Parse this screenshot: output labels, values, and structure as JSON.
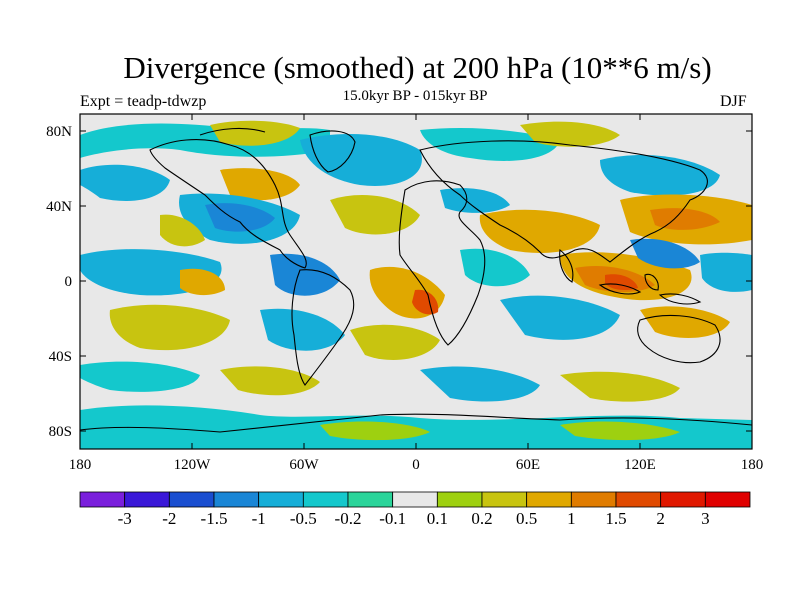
{
  "header": {
    "title": "Divergence (smoothed) at 200 hPa (10**6 m/s)",
    "subtitle": "15.0kyr BP - 015kyr BP",
    "experiment": "Expt = teadp-tdwzp",
    "season": "DJF"
  },
  "axes": {
    "lat_ticks": [
      "80N",
      "40N",
      "0",
      "40S",
      "80S"
    ],
    "lon_ticks": [
      "180",
      "120W",
      "60W",
      "0",
      "60E",
      "120E",
      "180"
    ]
  },
  "colorbar": {
    "labels": [
      "-3",
      "-2",
      "-1.5",
      "-1",
      "-0.5",
      "-0.2",
      "-0.1",
      "0.1",
      "0.2",
      "0.5",
      "1",
      "1.5",
      "2",
      "3"
    ],
    "colors": [
      "#7a1fdc",
      "#3a18d8",
      "#1a4ed0",
      "#1a86d6",
      "#16aed8",
      "#14c8cc",
      "#2bd49a",
      "#e8e8e8",
      "#9ed010",
      "#c8c410",
      "#e0a800",
      "#e07c00",
      "#e04a00",
      "#e01800",
      "#e00000"
    ]
  },
  "palette": {
    "background": "#e8e8e8",
    "neg_strong": "#1a86d6",
    "neg_mid": "#16aed8",
    "neg_weak": "#14c8cc",
    "neg_faint": "#2bd49a",
    "pos_faint": "#9ed010",
    "pos_weak": "#c8c410",
    "pos_mid": "#e0a800",
    "pos_strong": "#e07c00",
    "pos_max": "#e04a00"
  }
}
